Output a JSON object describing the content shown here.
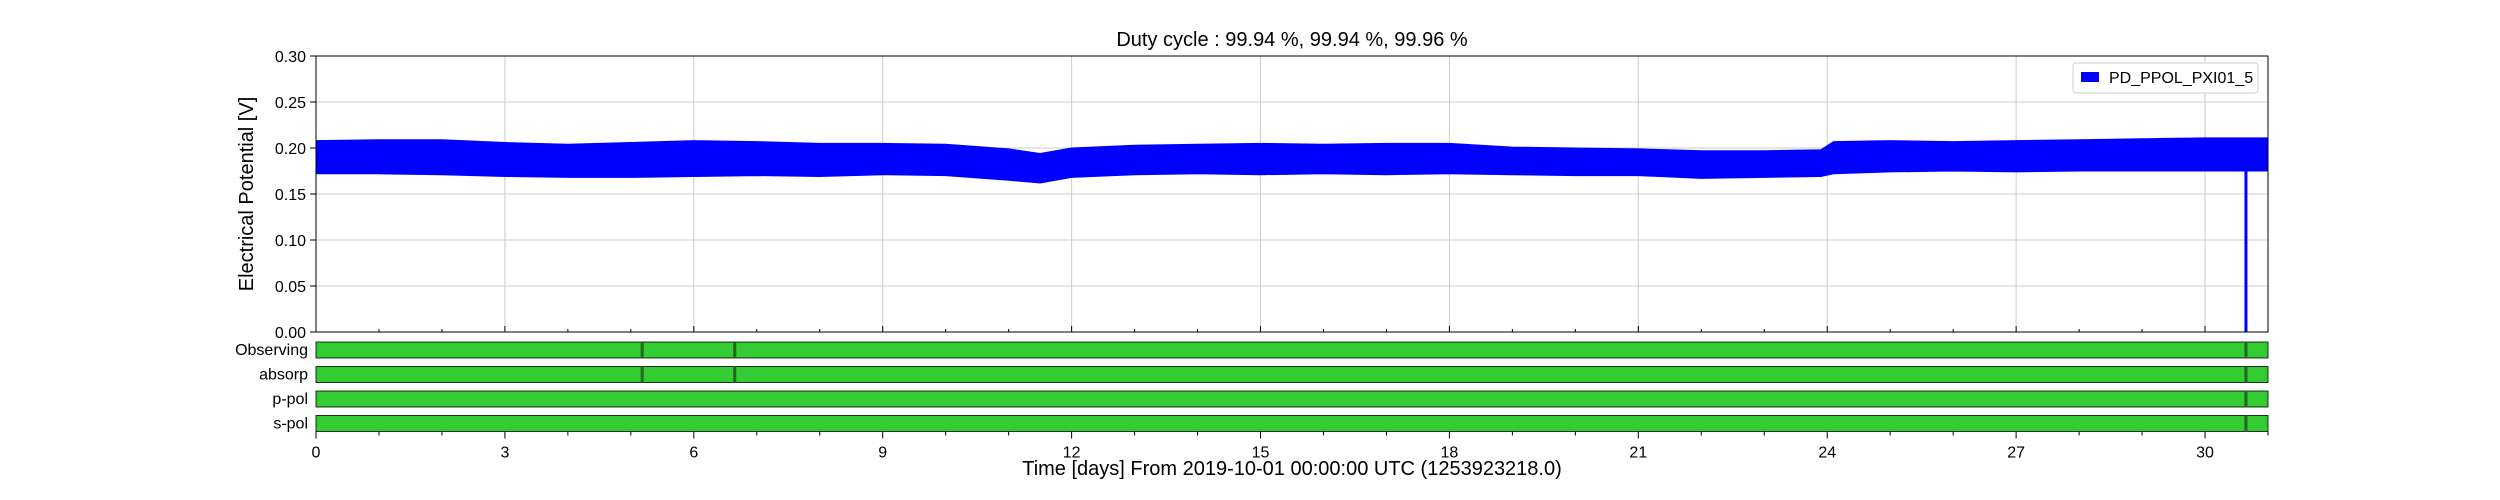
{
  "chart_data": {
    "type": "area",
    "title": "Duty cycle : 99.94 %, 99.94 %, 99.96 %",
    "ylabel": "Electrical Potential [V]",
    "xlabel": "Time [days] From 2019-10-01 00:00:00 UTC (1253923218.0)",
    "xlim": [
      0,
      31
    ],
    "ylim": [
      0,
      0.3
    ],
    "x_ticks": [
      "0",
      "3",
      "6",
      "9",
      "12",
      "15",
      "18",
      "21",
      "24",
      "27",
      "30"
    ],
    "y_ticks": [
      "0.00",
      "0.05",
      "0.10",
      "0.15",
      "0.20",
      "0.25",
      "0.30"
    ],
    "grid": true,
    "legend_position": "top-right",
    "series": [
      {
        "name": "PD_PPOL_PXI01_5",
        "color": "#0000ff",
        "x": [
          0,
          1,
          2,
          3,
          4,
          5,
          6,
          7,
          8,
          9,
          10,
          11,
          11.5,
          12,
          13,
          14,
          15,
          16,
          17,
          18,
          19,
          20,
          21,
          22,
          23,
          23.9,
          24.1,
          25,
          26,
          27,
          28,
          29,
          30,
          31
        ],
        "upper": [
          0.208,
          0.209,
          0.209,
          0.206,
          0.204,
          0.206,
          0.208,
          0.207,
          0.205,
          0.205,
          0.204,
          0.199,
          0.194,
          0.2,
          0.203,
          0.204,
          0.205,
          0.204,
          0.205,
          0.205,
          0.201,
          0.2,
          0.199,
          0.197,
          0.197,
          0.198,
          0.207,
          0.208,
          0.207,
          0.208,
          0.209,
          0.21,
          0.211,
          0.211
        ],
        "lower": [
          0.172,
          0.172,
          0.171,
          0.169,
          0.168,
          0.168,
          0.169,
          0.17,
          0.169,
          0.171,
          0.17,
          0.165,
          0.162,
          0.168,
          0.171,
          0.172,
          0.171,
          0.172,
          0.171,
          0.172,
          0.171,
          0.17,
          0.17,
          0.167,
          0.168,
          0.169,
          0.172,
          0.174,
          0.175,
          0.174,
          0.175,
          0.175,
          0.175,
          0.175
        ],
        "dropout_x": 30.65,
        "dropout_y": 0.0
      }
    ],
    "segments": [
      {
        "label": "Observing",
        "color": "#33cc33",
        "gap_color": "#226622",
        "gaps": [
          5.18,
          6.65,
          30.65
        ]
      },
      {
        "label": "absorp",
        "color": "#33cc33",
        "gap_color": "#226622",
        "gaps": [
          5.18,
          6.65,
          30.65
        ]
      },
      {
        "label": "p-pol",
        "color": "#33cc33",
        "gap_color": "#226622",
        "gaps": [
          30.65
        ]
      },
      {
        "label": "s-pol",
        "color": "#33cc33",
        "gap_color": "#226622",
        "gaps": [
          30.65
        ]
      }
    ]
  }
}
